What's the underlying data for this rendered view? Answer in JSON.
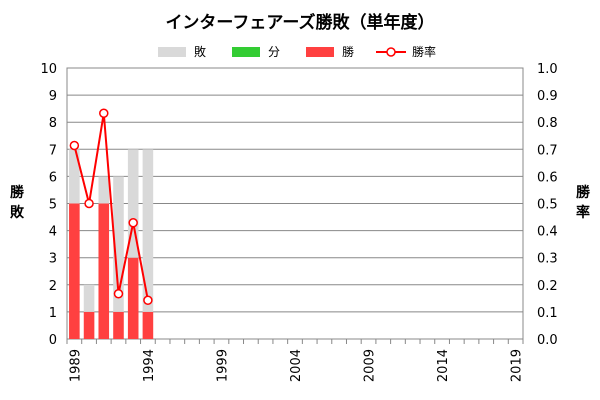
{
  "chart_data": {
    "type": "bar",
    "title": "インターフェアーズ勝敗（単年度）",
    "left_axis_label": [
      "勝",
      "敗"
    ],
    "right_axis_label": [
      "勝",
      "率"
    ],
    "legend": [
      {
        "name": "敗",
        "color": "#d9d9d9",
        "kind": "bar"
      },
      {
        "name": "分",
        "color": "#33cc33",
        "kind": "bar"
      },
      {
        "name": "勝",
        "color": "#ff4040",
        "kind": "bar"
      },
      {
        "name": "勝率",
        "color": "#ff0000",
        "kind": "line"
      }
    ],
    "x_range": [
      1989,
      2019
    ],
    "x_ticks": [
      "1989",
      "1994",
      "1999",
      "2004",
      "2009",
      "2014",
      "2019"
    ],
    "ylim_left": [
      0,
      10
    ],
    "y_ticks_left": [
      "0",
      "1",
      "2",
      "3",
      "4",
      "5",
      "6",
      "7",
      "8",
      "9",
      "10"
    ],
    "ylim_right": [
      0,
      1
    ],
    "y_ticks_right": [
      "0.0",
      "0.1",
      "0.2",
      "0.3",
      "0.4",
      "0.5",
      "0.6",
      "0.7",
      "0.8",
      "0.9",
      "1.0"
    ],
    "grid": true,
    "legend_position": "top",
    "x": [
      1989,
      1990,
      1991,
      1992,
      1993,
      1994
    ],
    "series": [
      {
        "name": "勝",
        "values": [
          5,
          1,
          5,
          1,
          3,
          1
        ]
      },
      {
        "name": "敗",
        "values": [
          2,
          1,
          1,
          5,
          4,
          6
        ]
      },
      {
        "name": "分",
        "values": [
          0,
          0,
          0,
          0,
          0,
          0
        ]
      },
      {
        "name": "勝率",
        "values": [
          0.714,
          0.5,
          0.833,
          0.167,
          0.429,
          0.143
        ]
      }
    ]
  }
}
